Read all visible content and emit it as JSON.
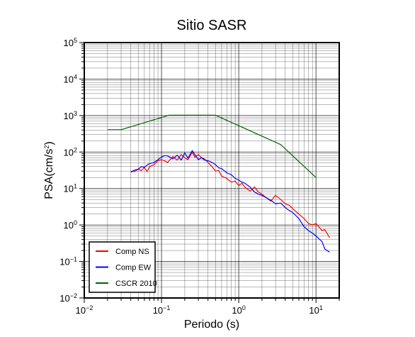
{
  "chart_data": {
    "type": "line",
    "title": "Sitio SASR",
    "xlabel": "Periodo (s)",
    "ylabel_base": "PSA(cm/s",
    "ylabel_sup": "2",
    "ylabel_close": ")",
    "x_scale": "log",
    "y_scale": "log",
    "xlim": [
      0.01,
      20
    ],
    "ylim": [
      0.01,
      100000
    ],
    "grid": true,
    "legend_position": "bottom-left",
    "x_ticks": [
      {
        "base": "10",
        "exp": "−2",
        "value": 0.01
      },
      {
        "base": "10",
        "exp": "−1",
        "value": 0.1
      },
      {
        "base": "10",
        "exp": "0",
        "value": 1
      },
      {
        "base": "10",
        "exp": "1",
        "value": 10
      }
    ],
    "y_ticks": [
      {
        "base": "10",
        "exp": "−2",
        "value": 0.01
      },
      {
        "base": "10",
        "exp": "−1",
        "value": 0.1
      },
      {
        "base": "10",
        "exp": "0",
        "value": 1
      },
      {
        "base": "10",
        "exp": "1",
        "value": 10
      },
      {
        "base": "10",
        "exp": "2",
        "value": 100
      },
      {
        "base": "10",
        "exp": "3",
        "value": 1000
      },
      {
        "base": "10",
        "exp": "4",
        "value": 10000
      },
      {
        "base": "10",
        "exp": "5",
        "value": 100000
      }
    ],
    "series": [
      {
        "name": "Comp NS",
        "color": "#ff0000",
        "x": [
          0.04,
          0.045,
          0.05,
          0.055,
          0.06,
          0.065,
          0.07,
          0.08,
          0.09,
          0.1,
          0.11,
          0.12,
          0.14,
          0.16,
          0.18,
          0.2,
          0.22,
          0.25,
          0.27,
          0.3,
          0.33,
          0.36,
          0.4,
          0.45,
          0.5,
          0.55,
          0.6,
          0.7,
          0.8,
          0.9,
          1.0,
          1.1,
          1.2,
          1.4,
          1.6,
          1.8,
          2.0,
          2.3,
          2.6,
          3.0,
          3.5,
          4.0,
          4.5,
          5.0,
          6.0,
          7.0,
          8.0,
          9.0,
          10.0,
          12.0,
          13.0,
          15.0
        ],
        "y": [
          30,
          29,
          34,
          31,
          38,
          29,
          40,
          45,
          58,
          62,
          57,
          52,
          75,
          60,
          85,
          70,
          62,
          98,
          72,
          85,
          70,
          65,
          52,
          40,
          30,
          31,
          22,
          19,
          15,
          16,
          12,
          14,
          11,
          8.5,
          11,
          8,
          7,
          5.5,
          4.5,
          6.5,
          5.0,
          3.8,
          3.5,
          2.8,
          2.0,
          1.5,
          1.1,
          1.0,
          1.1,
          0.7,
          0.75,
          0.45
        ]
      },
      {
        "name": "Comp EW",
        "color": "#0000ff",
        "x": [
          0.04,
          0.045,
          0.05,
          0.055,
          0.06,
          0.065,
          0.07,
          0.08,
          0.09,
          0.1,
          0.11,
          0.12,
          0.14,
          0.16,
          0.18,
          0.2,
          0.22,
          0.25,
          0.27,
          0.3,
          0.33,
          0.36,
          0.4,
          0.45,
          0.5,
          0.55,
          0.6,
          0.7,
          0.8,
          0.9,
          1.0,
          1.1,
          1.2,
          1.4,
          1.6,
          1.8,
          2.0,
          2.3,
          2.6,
          3.0,
          3.5,
          4.0,
          4.5,
          5.0,
          6.0,
          7.0,
          8.0,
          9.0,
          10.0,
          12.0,
          13.0,
          15.0
        ],
        "y": [
          28,
          32,
          34,
          40,
          38,
          44,
          48,
          52,
          62,
          73,
          80,
          78,
          65,
          82,
          60,
          95,
          68,
          110,
          85,
          62,
          70,
          60,
          58,
          52,
          45,
          37,
          35,
          27,
          24,
          19,
          17,
          15,
          14,
          11,
          8,
          7,
          6.5,
          5.5,
          4.8,
          3.8,
          4.0,
          3.0,
          2.5,
          2.2,
          1.5,
          0.9,
          0.7,
          0.6,
          0.5,
          0.35,
          0.22,
          0.18
        ]
      },
      {
        "name": "CSCR 2010",
        "color": "#006400",
        "x": [
          0.02,
          0.03,
          0.125,
          0.5,
          3.5,
          10.0
        ],
        "y": [
          410,
          410,
          1020,
          1020,
          160,
          20
        ]
      }
    ]
  }
}
